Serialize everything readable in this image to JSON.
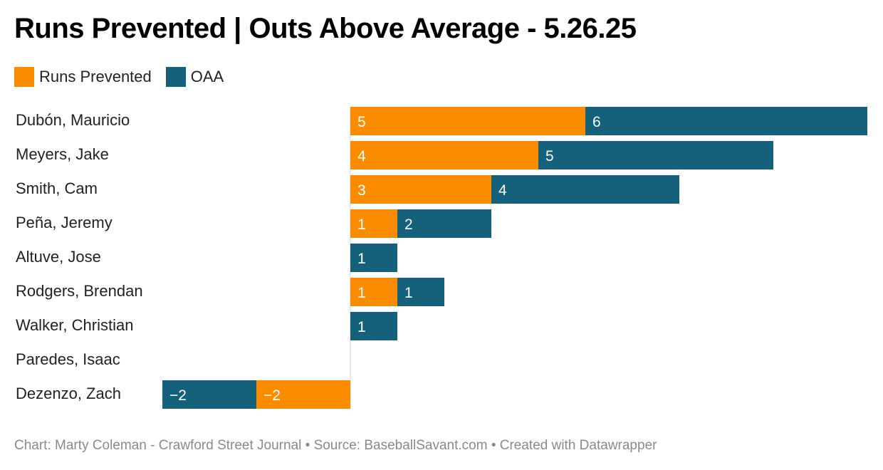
{
  "title": "Runs Prevented | Outs Above Average - 5.26.25",
  "legend": [
    {
      "label": "Runs Prevented",
      "color": "#fb8c00"
    },
    {
      "label": "OAA",
      "color": "#15607a"
    }
  ],
  "footer": "Chart: Marty Coleman - Crawford Street Journal • Source: BaseballSavant.com • Created with Datawrapper",
  "chart_data": {
    "type": "bar",
    "orientation": "horizontal",
    "stacked": true,
    "categories": [
      "Dubón, Mauricio",
      "Meyers, Jake",
      "Smith, Cam",
      "Peña, Jeremy",
      "Altuve, Jose",
      "Rodgers, Brendan",
      "Walker, Christian",
      "Paredes, Isaac",
      "Dezenzo, Zach"
    ],
    "series": [
      {
        "name": "Runs Prevented",
        "color": "#fb8c00",
        "values": [
          5,
          4,
          3,
          1,
          0,
          1,
          0,
          0,
          -2
        ],
        "labels": [
          "5",
          "4",
          "3",
          "1",
          "",
          "1",
          "",
          "",
          "−2"
        ]
      },
      {
        "name": "OAA",
        "color": "#15607a",
        "values": [
          6,
          5,
          4,
          2,
          1,
          1,
          1,
          0,
          -2
        ],
        "labels": [
          "6",
          "5",
          "4",
          "2",
          "1",
          "1",
          "1",
          "",
          "−2"
        ]
      }
    ]
  }
}
